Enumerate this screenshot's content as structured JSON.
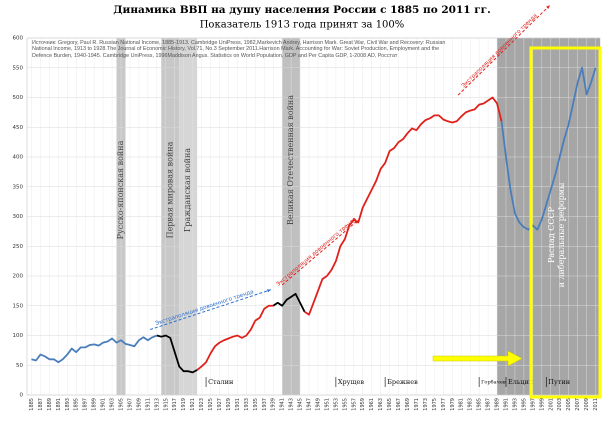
{
  "chart_data": {
    "type": "line",
    "title": "Динамика ВВП на душу населения России с 1885 по 2011 гг.",
    "subtitle": "Показатель 1913 года принят за 100%",
    "source": "Источник: Gregory, Paul R. Russian National Income, 1885-1913. Cambridge UniPress, 1982,Markevich Andrey, Harrison Mark. Great War, Civil War and Recovery: Russian National Income, 1913 to 1928.The Journal of Economic History, Vol.71, No.3 September 2011.Harrison Mark. Accounting for War: Soviet Production, Employment and the Defence Burden, 1940-1945. Cambridge UniPress, 1996Maddison Angus. Statistics on World Population, GDP and Per Capita GDP, 1-2008 AD, Росстат",
    "xlim": [
      1884,
      2012
    ],
    "ylim": [
      0,
      600
    ],
    "yticks": [
      0,
      50,
      100,
      150,
      200,
      250,
      300,
      350,
      400,
      450,
      500,
      550,
      600
    ],
    "xticks": [
      1885,
      1887,
      1889,
      1891,
      1893,
      1895,
      1897,
      1899,
      1901,
      1903,
      1905,
      1907,
      1909,
      1911,
      1913,
      1915,
      1917,
      1919,
      1921,
      1923,
      1925,
      1927,
      1929,
      1931,
      1933,
      1935,
      1937,
      1939,
      1941,
      1943,
      1945,
      1947,
      1949,
      1951,
      1953,
      1955,
      1957,
      1959,
      1961,
      1963,
      1965,
      1967,
      1969,
      1971,
      1973,
      1975,
      1977,
      1979,
      1981,
      1983,
      1985,
      1987,
      1989,
      1991,
      1993,
      1995,
      1997,
      1999,
      2001,
      2003,
      2005,
      2007,
      2009,
      2011
    ],
    "grid": true,
    "bands": [
      {
        "start": 1904,
        "end": 1906,
        "color": "#c8c8c8",
        "label": "Русско-японская война"
      },
      {
        "start": 1914,
        "end": 1918,
        "color": "#c8c8c8",
        "label": "Первая мировая война"
      },
      {
        "start": 1918,
        "end": 1922,
        "color": "#d6d6d6",
        "label": "Гражданская война"
      },
      {
        "start": 1941,
        "end": 1945,
        "color": "#c0c0c0",
        "label": "Великая Отечественная война"
      },
      {
        "start": 1989,
        "end": 2012,
        "color": "#a6a6a6"
      }
    ],
    "series": [
      {
        "color": "#4a7ebb",
        "x": [
          1885,
          1886,
          1887,
          1888,
          1889,
          1890,
          1891,
          1892,
          1893,
          1894,
          1895,
          1896,
          1897,
          1898,
          1899,
          1900,
          1901,
          1902,
          1903,
          1904,
          1905,
          1906,
          1907,
          1908,
          1909,
          1910,
          1911,
          1912,
          1913
        ],
        "values": [
          60,
          58,
          68,
          65,
          60,
          60,
          55,
          60,
          68,
          78,
          72,
          80,
          80,
          84,
          85,
          83,
          88,
          90,
          95,
          88,
          92,
          86,
          84,
          82,
          92,
          97,
          92,
          97,
          100
        ]
      },
      {
        "color": "#000000",
        "x": [
          1913,
          1914,
          1915,
          1916,
          1917,
          1918,
          1919,
          1920,
          1921,
          1922
        ],
        "values": [
          100,
          98,
          100,
          96,
          72,
          48,
          40,
          40,
          38,
          42
        ]
      },
      {
        "color": "#e0201b",
        "x": [
          1922,
          1923,
          1924,
          1925,
          1926,
          1927,
          1928,
          1929,
          1930,
          1931,
          1932,
          1933,
          1934,
          1935,
          1936,
          1937,
          1938,
          1939
        ],
        "values": [
          42,
          48,
          55,
          70,
          82,
          88,
          92,
          95,
          98,
          100,
          96,
          100,
          110,
          125,
          130,
          145,
          150,
          150
        ]
      },
      {
        "color": "#000000",
        "x": [
          1939,
          1940,
          1941,
          1942,
          1943,
          1944,
          1945,
          1946
        ],
        "values": [
          150,
          155,
          150,
          160,
          165,
          170,
          155,
          140
        ]
      },
      {
        "color": "#e0201b",
        "x": [
          1946,
          1947,
          1948,
          1949,
          1950,
          1951,
          1952,
          1953,
          1954,
          1955,
          1956,
          1957,
          1958,
          1959,
          1960,
          1961,
          1962,
          1963,
          1964,
          1965,
          1966,
          1967,
          1968,
          1969,
          1970,
          1971,
          1972,
          1973,
          1974,
          1975,
          1976,
          1977,
          1978,
          1979,
          1980,
          1981,
          1982,
          1983,
          1984,
          1985,
          1986,
          1987,
          1988,
          1989,
          1990
        ],
        "values": [
          140,
          135,
          155,
          175,
          195,
          200,
          210,
          225,
          250,
          262,
          285,
          295,
          290,
          315,
          330,
          345,
          360,
          380,
          390,
          410,
          415,
          425,
          430,
          440,
          448,
          445,
          455,
          462,
          465,
          470,
          470,
          463,
          460,
          458,
          460,
          468,
          475,
          478,
          480,
          488,
          490,
          495,
          500,
          490,
          460
        ]
      },
      {
        "color": "#4a7ebb",
        "x": [
          1990,
          1991,
          1992,
          1993,
          1994,
          1995,
          1996,
          1997,
          1998,
          1999,
          2000,
          2001,
          2002,
          2003,
          2004,
          2005,
          2006,
          2007,
          2008,
          2009,
          2010,
          2011
        ],
        "values": [
          460,
          400,
          345,
          305,
          290,
          282,
          278,
          285,
          278,
          295,
          320,
          345,
          370,
          400,
          430,
          455,
          490,
          525,
          550,
          505,
          525,
          550
        ]
      }
    ],
    "trends": [
      {
        "text": "Экстраполяция довоенного тренда",
        "color": "#2f6fd0",
        "x": [
          1911.5,
          1938.5
        ],
        "y": [
          110,
          177
        ]
      },
      {
        "text": "Экстраполяция довоенного тренда",
        "color": "#e0201b",
        "x": [
          1941,
          1958
        ],
        "y": [
          185,
          294
        ]
      },
      {
        "text": "Экстраполяция довоенного тренда",
        "color": "#e0201b",
        "x": [
          1980.3,
          2000.8
        ],
        "y": [
          504,
          655
        ]
      }
    ],
    "leaders": [
      {
        "name": "Сталин",
        "year": 1924
      },
      {
        "name": "Хрущев",
        "year": 1953
      },
      {
        "name": "Брежнев",
        "year": 1964
      },
      {
        "name": "Горбачев",
        "year": 1985
      },
      {
        "name": "Ельцин",
        "year": 1991
      },
      {
        "name": "Путин",
        "year": 2000
      }
    ],
    "highlight": {
      "label": [
        "Распад СССР",
        "и либеральные реформы"
      ],
      "color": "#ffff00"
    }
  }
}
